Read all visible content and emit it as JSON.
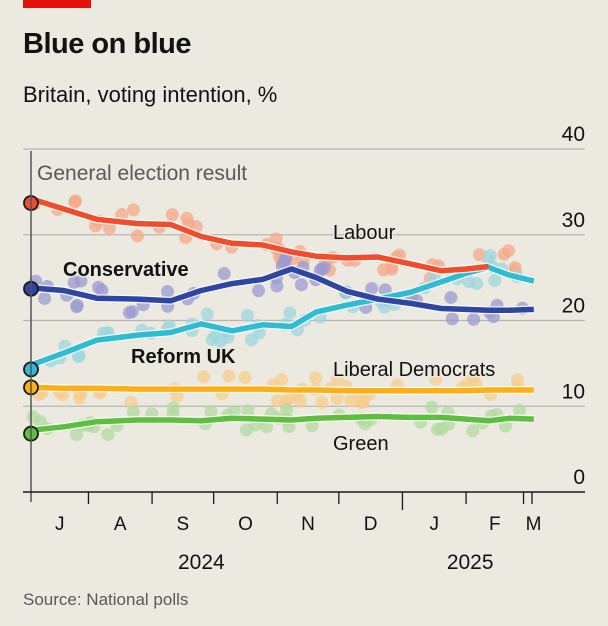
{
  "header": {
    "title": "Blue on blue",
    "subtitle": "Britain, voting intention, %"
  },
  "footer": {
    "source": "Source: National polls"
  },
  "chart_data": {
    "type": "line",
    "title": "Blue on blue",
    "subtitle": "Britain, voting intention, %",
    "xlabel": "",
    "ylabel": "%",
    "ylim": [
      0,
      40
    ],
    "yticks": [
      0,
      10,
      20,
      30,
      40
    ],
    "grid": true,
    "x_domain": [
      "2024-07-04",
      "2025-03-10"
    ],
    "month_ticks": [
      {
        "date": "2024-07-04",
        "label": "J"
      },
      {
        "date": "2024-08-01",
        "label": "A"
      },
      {
        "date": "2024-09-01",
        "label": "S"
      },
      {
        "date": "2024-10-01",
        "label": "O"
      },
      {
        "date": "2024-11-01",
        "label": "N"
      },
      {
        "date": "2024-12-01",
        "label": "D"
      },
      {
        "date": "2025-01-01",
        "label": "J"
      },
      {
        "date": "2025-02-01",
        "label": "F"
      },
      {
        "date": "2025-03-01",
        "label": "M"
      }
    ],
    "year_labels": [
      {
        "label": "2024",
        "date": "2024-09-25"
      },
      {
        "label": "2025",
        "date": "2025-02-03"
      }
    ],
    "annotation": "General election result",
    "x": [
      "2024-07-04",
      "2024-07-20",
      "2024-08-05",
      "2024-08-25",
      "2024-09-10",
      "2024-09-25",
      "2024-10-10",
      "2024-10-25",
      "2024-11-08",
      "2024-11-20",
      "2024-12-05",
      "2024-12-20",
      "2025-01-05",
      "2025-01-20",
      "2025-02-01",
      "2025-02-12",
      "2025-02-22",
      "2025-03-06"
    ],
    "series": [
      {
        "name": "Labour",
        "color": "#f04d2e",
        "dot_color": "#f5a88a",
        "label_bold": false,
        "election_result": 33.7,
        "values": [
          34.2,
          33.0,
          31.8,
          31.3,
          31.2,
          29.8,
          29.0,
          28.8,
          28.0,
          27.5,
          27.3,
          27.4,
          26.6,
          25.8,
          26.0,
          26.3,
          null,
          27.0
        ]
      },
      {
        "name": "Conservative",
        "color": "#2e45a4",
        "dot_color": "#9b9bd1",
        "label_bold": true,
        "election_result": 23.7,
        "values": [
          23.8,
          23.5,
          22.6,
          22.5,
          22.3,
          23.5,
          24.3,
          24.8,
          26.0,
          25.0,
          23.4,
          22.5,
          22.0,
          21.4,
          21.3,
          21.2,
          21.2,
          21.3
        ]
      },
      {
        "name": "Reform UK",
        "color": "#2fbcd3",
        "dot_color": "#9fd6df",
        "label_bold": true,
        "election_result": 14.3,
        "values": [
          14.8,
          16.2,
          17.7,
          18.3,
          18.6,
          19.6,
          18.8,
          19.5,
          19.3,
          21.0,
          21.8,
          22.5,
          23.3,
          24.5,
          25.5,
          26.2,
          25.3,
          24.6
        ]
      },
      {
        "name": "Liberal Democrats",
        "color": "#fcaf17",
        "dot_color": "#f7cc8f",
        "label_bold": false,
        "election_result": 12.2,
        "values": [
          12.2,
          12.1,
          12.1,
          12.0,
          12.0,
          12.0,
          12.0,
          12.0,
          11.9,
          11.9,
          11.8,
          11.8,
          11.8,
          11.8,
          11.8,
          11.9,
          11.9,
          11.9
        ]
      },
      {
        "name": "Green",
        "color": "#5ebe3f",
        "dot_color": "#b2d9a0",
        "label_bold": false,
        "election_result": 6.8,
        "values": [
          7.2,
          7.6,
          8.2,
          8.4,
          8.4,
          8.3,
          8.6,
          8.5,
          8.4,
          8.6,
          8.7,
          8.8,
          8.7,
          8.7,
          8.5,
          8.3,
          8.6,
          8.5
        ]
      }
    ]
  }
}
